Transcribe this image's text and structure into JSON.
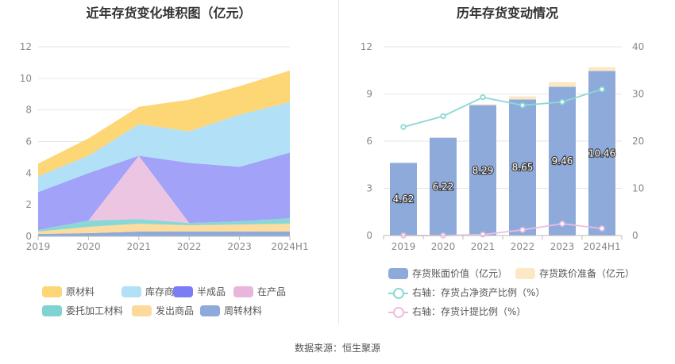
{
  "source": "数据来源：恒生聚源",
  "chart_data": [
    {
      "type": "area",
      "stacked": true,
      "title": "近年存货变化堆积图（亿元）",
      "categories": [
        "2019",
        "2020",
        "2021",
        "2022",
        "2023",
        "2024H1"
      ],
      "ylim": [
        0,
        12
      ],
      "yticks": [
        0,
        2,
        4,
        6,
        8,
        10,
        12
      ],
      "legend_position": "bottom",
      "series": [
        {
          "name": "周转材料",
          "color": "#8eaadb",
          "values": [
            0.15,
            0.2,
            0.3,
            0.3,
            0.3,
            0.3
          ]
        },
        {
          "name": "发出商品",
          "color": "#fedc9e",
          "values": [
            0.15,
            0.4,
            0.5,
            0.4,
            0.45,
            0.5
          ]
        },
        {
          "name": "委托加工材料",
          "color": "#8ad8d6",
          "values": [
            0.1,
            0.4,
            0.3,
            0.15,
            0.2,
            0.35
          ]
        },
        {
          "name": "在产品",
          "color": "#ecc5e2",
          "values": [
            0,
            0,
            4.0,
            0,
            0,
            0
          ]
        },
        {
          "name": "半成品",
          "color": "#a1a2f8",
          "values": [
            2.4,
            3.0,
            0,
            3.8,
            3.45,
            4.15
          ]
        },
        {
          "name": "库存商品",
          "color": "#b2e0f7",
          "values": [
            1.0,
            1.1,
            2.0,
            2.0,
            3.3,
            3.2
          ]
        },
        {
          "name": "原材料",
          "color": "#fdd676",
          "values": [
            0.8,
            1.1,
            1.1,
            2.0,
            1.8,
            2.0
          ]
        }
      ],
      "legend_order": [
        "原材料",
        "库存商品",
        "半成品",
        "在产品",
        "委托加工材料",
        "发出商品",
        "周转材料"
      ]
    },
    {
      "type": "bar",
      "title": "历年存货变动情况",
      "categories": [
        "2019",
        "2020",
        "2021",
        "2022",
        "2023",
        "2024H1"
      ],
      "ylim": [
        0,
        12
      ],
      "yticks": [
        0,
        3,
        6,
        9,
        12
      ],
      "y2lim": [
        0,
        40
      ],
      "y2ticks": [
        0,
        10,
        20,
        30,
        40
      ],
      "legend_position": "bottom",
      "series": [
        {
          "name": "存货账面价值（亿元）",
          "kind": "bar",
          "axis": "left",
          "color": "#8eaadb",
          "values": [
            4.62,
            6.22,
            8.29,
            8.65,
            9.46,
            10.46
          ],
          "labels": [
            "4.62",
            "6.22",
            "8.29",
            "8.65",
            "9.46",
            "10.46"
          ]
        },
        {
          "name": "存货跌价准备（亿元）",
          "kind": "bar",
          "axis": "left",
          "color": "#fde8c6",
          "values": [
            0,
            0.02,
            0.05,
            0.2,
            0.3,
            0.25
          ]
        },
        {
          "name": "右轴：存货占净资产比例（%）",
          "kind": "line",
          "axis": "right",
          "color": "#8ad8d6",
          "values": [
            23.0,
            25.3,
            29.3,
            27.6,
            28.3,
            31.0
          ]
        },
        {
          "name": "右轴：存货计提比例（%）",
          "kind": "line",
          "axis": "right",
          "color": "#ecbde0",
          "values": [
            0,
            0,
            0.2,
            1.2,
            2.5,
            1.5
          ]
        }
      ]
    }
  ]
}
